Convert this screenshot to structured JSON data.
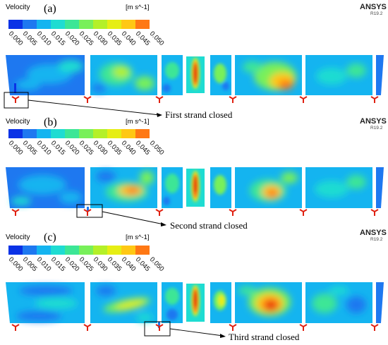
{
  "legend": {
    "title": "Velocity",
    "unit": "[m s^-1]",
    "ticks": [
      "0.000",
      "0.005",
      "0.010",
      "0.015",
      "0.020",
      "0.025",
      "0.030",
      "0.035",
      "0.040",
      "0.045",
      "0.050"
    ],
    "colors": [
      "#0a32e6",
      "#1e78f0",
      "#14b4f0",
      "#1edcd2",
      "#3ce696",
      "#78f05a",
      "#b4f028",
      "#e6ee14",
      "#ffc814",
      "#ff7814"
    ]
  },
  "brand": {
    "name": "ANSYS",
    "version": "R19.2"
  },
  "panels": [
    {
      "label": "(a)",
      "annotation": "First strand closed",
      "closed_strand": 1
    },
    {
      "label": "(b)",
      "annotation": "Second strand closed",
      "closed_strand": 2
    },
    {
      "label": "(c)",
      "annotation": "Third strand closed",
      "closed_strand": 3
    }
  ]
}
